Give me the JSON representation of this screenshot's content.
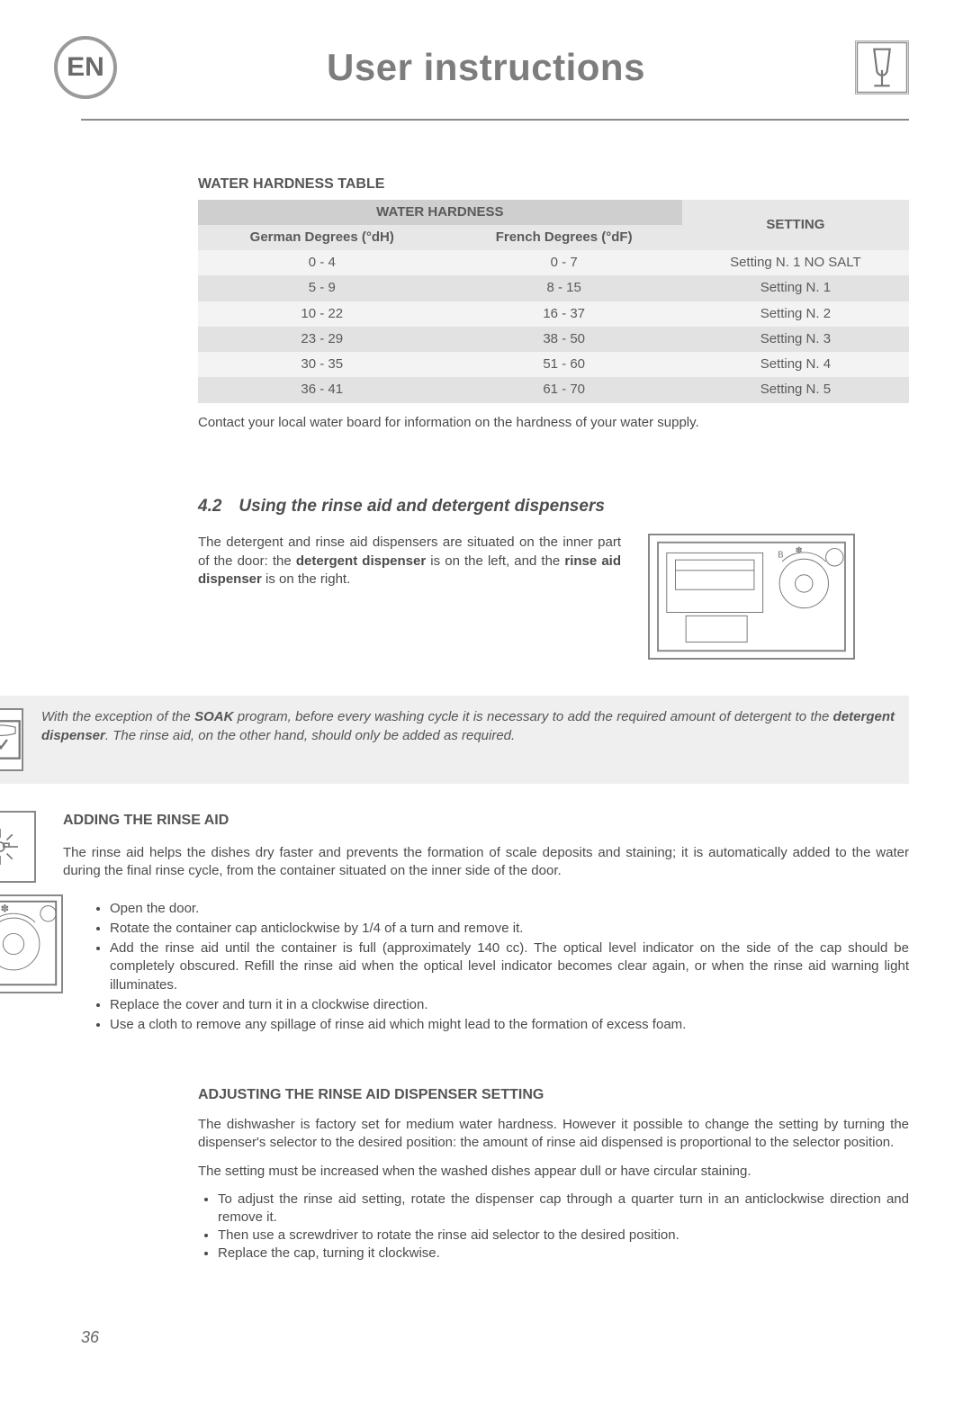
{
  "language": "EN",
  "title": "User instructions",
  "hardness": {
    "heading": "WATER HARDNESS TABLE",
    "span_header": "WATER HARDNESS",
    "col_german": "German Degrees (°dH)",
    "col_french": "French Degrees (°dF)",
    "col_setting": "SETTING",
    "rows": [
      {
        "de": "0 - 4",
        "fr": "0 - 7",
        "set": "Setting N. 1 NO SALT"
      },
      {
        "de": "5 - 9",
        "fr": "8 - 15",
        "set": "Setting N. 1"
      },
      {
        "de": "10 - 22",
        "fr": "16 - 37",
        "set": "Setting N. 2"
      },
      {
        "de": "23 - 29",
        "fr": "38 - 50",
        "set": "Setting N. 3"
      },
      {
        "de": "30 - 35",
        "fr": "51 - 60",
        "set": "Setting N. 4"
      },
      {
        "de": "36 - 41",
        "fr": "61 - 70",
        "set": "Setting N. 5"
      }
    ],
    "footnote": "Contact your local water board for information on the hardness of your water supply."
  },
  "section42": {
    "title": "4.2 Using the rinse aid and detergent dispensers",
    "para_pre": "The detergent and rinse aid dispensers are situated on the inner part of the door: the ",
    "bold1": "detergent dispenser",
    "para_mid": " is on the left, and the ",
    "bold2": "rinse aid dispenser",
    "para_post": " is on the right."
  },
  "callout": {
    "pre": "With the exception of the ",
    "soak": "SOAK",
    "mid": " program, before every washing cycle it is necessary to add the required amount of detergent to the ",
    "dd": "detergent dispenser",
    "post": ". The rinse aid, on the other hand, should only be added as required."
  },
  "rinse": {
    "heading": "ADDING THE RINSE AID",
    "intro": "The rinse aid helps the dishes dry faster and prevents the formation of scale deposits and staining; it is automatically added to the water during the final rinse cycle, from the container situated on the inner side of the door.",
    "steps": [
      "Open the door.",
      "Rotate the container cap anticlockwise by 1/4 of a turn and remove it.",
      "Add the rinse aid until the container is full (approximately 140 cc). The optical level indicator on the side of the cap should be completely obscured. Refill the rinse aid when the optical level indicator becomes clear again, or when the rinse aid warning light illuminates.",
      "Replace the cover and turn it in a clockwise direction.",
      "Use a cloth to remove any spillage of rinse aid which might lead to the formation of excess foam."
    ]
  },
  "adjust": {
    "heading": "ADJUSTING THE RINSE AID DISPENSER SETTING",
    "p1": "The dishwasher is factory set for medium water hardness. However it possible to change the setting by turning the dispenser's selector to the desired position: the amount of rinse aid dispensed is proportional to the selector position.",
    "p2": "The setting must be increased when the washed dishes appear dull or have circular staining.",
    "steps": [
      "To adjust the rinse aid setting, rotate the dispenser cap through a quarter turn in an anticlockwise direction and remove it.",
      "Then use a screwdriver to rotate the rinse aid selector to the desired position.",
      "Replace the cap, turning it clockwise."
    ]
  },
  "page_number": "36"
}
